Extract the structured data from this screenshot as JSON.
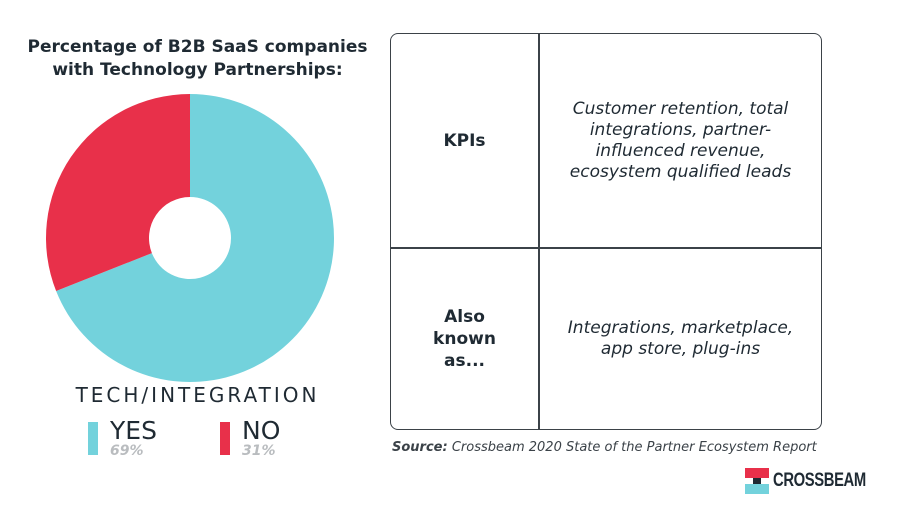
{
  "chart_data": {
    "type": "pie",
    "title": "Percentage of B2B SaaS companies with Technology Partnerships:",
    "group_label": "TECH/INTEGRATION",
    "slices": [
      {
        "name": "YES",
        "value": 69,
        "label": "69%",
        "color": "#73d2dc"
      },
      {
        "name": "NO",
        "value": 31,
        "label": "31%",
        "color": "#e8304a"
      }
    ],
    "donut": true,
    "start_angle_deg": 0,
    "direction": "clockwise",
    "legend_placement": "bottom"
  },
  "table": {
    "rows": [
      {
        "header": "KPIs",
        "value": "Customer retention, total integrations, partner-influenced revenue, ecosystem qualified leads"
      },
      {
        "header": "Also known as...",
        "value": "Integrations, marketplace, app store, plug-ins"
      }
    ]
  },
  "source": {
    "label": "Source:",
    "text": "Crossbeam 2020 State of the Partner Ecosystem Report"
  },
  "brand": {
    "name": "CROSSBEAM",
    "icon": "crossbeam-logo-icon",
    "colors": {
      "top": "#e8304a",
      "bottom": "#73d2dc",
      "dark": "#1f2a33"
    }
  }
}
